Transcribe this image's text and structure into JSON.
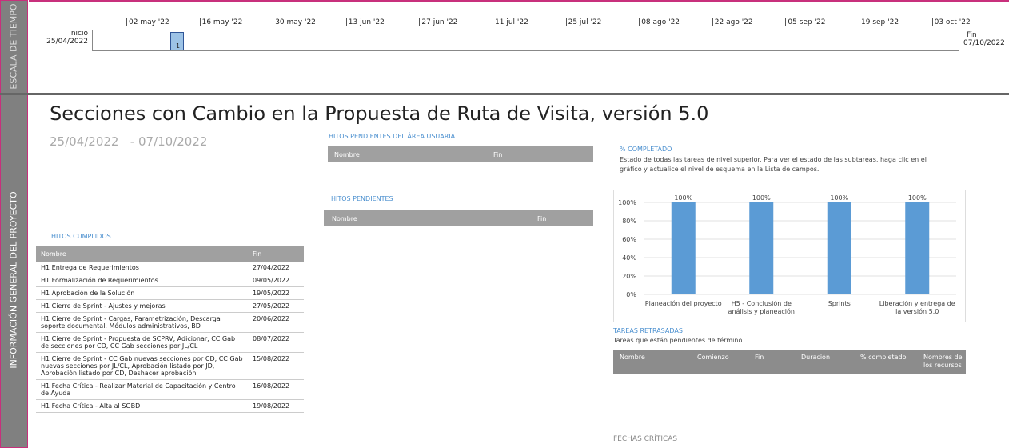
{
  "sidebar": {
    "timescale": "ESCALA DE TIEMPO",
    "overview": "INFORMACIÓN GENERAL DEL PROYECTO"
  },
  "timeline": {
    "start_label": "Inicio",
    "start_date": "25/04/2022",
    "end_label": "Fin",
    "end_date": "07/10/2022",
    "ticks": [
      "02 may '22",
      "16 may '22",
      "30 may '22",
      "13 jun '22",
      "27 jun '22",
      "11 jul '22",
      "25 jul '22",
      "08 ago '22",
      "22 ago '22",
      "05 sep '22",
      "19 sep '22",
      "03 oct '22"
    ],
    "milestone": "1"
  },
  "header": {
    "title": "Secciones con Cambio en la Propuesta de Ruta de Visita, versión 5.0",
    "start": "25/04/2022",
    "separator": "-",
    "end": "07/10/2022"
  },
  "hitos_area_usuaria": {
    "title": "HITOS PENDIENTES DEL ÁREA USUARIA",
    "columns": [
      "Nombre",
      "Fin"
    ]
  },
  "hitos_pendientes": {
    "title": "HITOS PENDIENTES",
    "columns": [
      "Nombre",
      "Fin"
    ]
  },
  "hitos_cumplidos": {
    "title": "HITOS CUMPLIDOS",
    "columns": [
      "Nombre",
      "Fin"
    ],
    "rows": [
      [
        "H1 Entrega de Requerimientos",
        "27/04/2022"
      ],
      [
        "H1 Formalización de Requerimientos",
        "09/05/2022"
      ],
      [
        "H1 Aprobación de la Solución",
        "19/05/2022"
      ],
      [
        "H1 Cierre de Sprint - Ajustes y mejoras",
        "27/05/2022"
      ],
      [
        "H1 Cierre de Sprint - Cargas, Parametrización, Descarga soporte documental, Módulos administrativos, BD",
        "20/06/2022"
      ],
      [
        "H1 Cierre de Sprint - Propuesta de SCPRV, Adicionar, CC Gab de secciones por CD, CC Gab secciones por JL/CL",
        "08/07/2022"
      ],
      [
        "H1 Cierre de Sprint - CC Gab nuevas secciones por CD, CC Gab nuevas secciones por JL/CL, Aprobación listado por JD, Aprobación listado por CD, Deshacer aprobación",
        "15/08/2022"
      ],
      [
        "H1 Fecha Crítica - Realizar Material de Capacitación y Centro de Ayuda",
        "16/08/2022"
      ],
      [
        "H1 Fecha Crítica - Alta al SGBD",
        "19/08/2022"
      ]
    ]
  },
  "completado": {
    "title": "% COMPLETADO",
    "description": "Estado de todas las tareas de nivel superior. Para ver el estado de las subtareas, haga clic en el gráfico y actualice el nivel de esquema en la Lista de campos."
  },
  "chart_data": {
    "type": "bar",
    "categories": [
      "Planeación del proyecto",
      "H5 - Conclusión de análisis y planeación",
      "Sprints",
      "Liberación y entrega de la versión 5.0"
    ],
    "values": [
      100,
      100,
      100,
      100
    ],
    "value_labels": [
      "100%",
      "100%",
      "100%",
      "100%"
    ],
    "color": "#5b9bd5",
    "ylim": [
      0,
      100
    ],
    "yticks": [
      {
        "value": 0,
        "label": "0%"
      },
      {
        "value": 20,
        "label": "20%"
      },
      {
        "value": 40,
        "label": "40%"
      },
      {
        "value": 60,
        "label": "60%"
      },
      {
        "value": 80,
        "label": "80%"
      },
      {
        "value": 100,
        "label": "100%"
      }
    ],
    "grid": true
  },
  "tareas_retrasadas": {
    "title": "TAREAS RETRASADAS",
    "description": "Tareas que están pendientes de término.",
    "columns": [
      "Nombre",
      "Comienzo",
      "Fin",
      "Duración",
      "% completado",
      "Nombres de los recursos"
    ]
  },
  "fechas_criticas": {
    "title": "FECHAS CRÍTICAS"
  }
}
